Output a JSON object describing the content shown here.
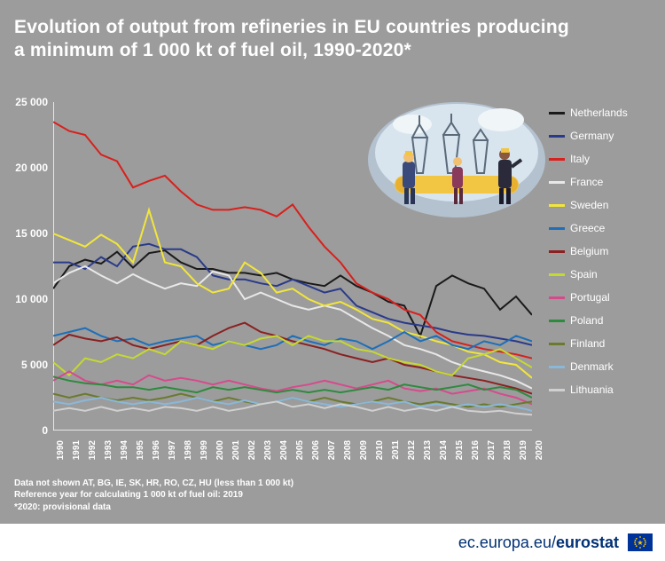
{
  "title_line1": "Evolution of output from refineries in EU countries producing",
  "title_line2": "a minimum of 1 000 kt of fuel oil, 1990-2020*",
  "background_color": "#9c9c9c",
  "text_color": "#ffffff",
  "axis_color": "#ffffff",
  "y": {
    "min": 0,
    "max": 25000,
    "step": 5000,
    "ticks": [
      0,
      5000,
      10000,
      15000,
      20000,
      25000
    ],
    "labels": [
      "0",
      "5 000",
      "10 000",
      "15 000",
      "20 000",
      "25 000"
    ]
  },
  "x": {
    "min": 1990,
    "max": 2020,
    "ticks": [
      1990,
      1991,
      1992,
      1993,
      1994,
      1995,
      1996,
      1997,
      1998,
      1999,
      2000,
      2001,
      2002,
      2003,
      2004,
      2005,
      2006,
      2007,
      2008,
      2009,
      2010,
      2011,
      2012,
      2013,
      2014,
      2015,
      2016,
      2017,
      2018,
      2019,
      2020
    ]
  },
  "series": [
    {
      "name": "Netherlands",
      "color": "#1a1a1a",
      "values": [
        10800,
        12500,
        13000,
        12700,
        13600,
        12400,
        13500,
        13700,
        12800,
        12300,
        12300,
        12000,
        12000,
        11800,
        12000,
        11500,
        11200,
        11000,
        11800,
        11000,
        10500,
        9800,
        9500,
        7200,
        11000,
        11800,
        11200,
        10800,
        9200,
        10200,
        8800
      ]
    },
    {
      "name": "Germany",
      "color": "#2a3a8a",
      "values": [
        12800,
        12800,
        12300,
        13200,
        12500,
        14000,
        14200,
        13800,
        13800,
        13200,
        11800,
        11500,
        11500,
        11200,
        11000,
        11500,
        11000,
        10500,
        10800,
        9500,
        9000,
        8500,
        8200,
        8000,
        7800,
        7500,
        7300,
        7200,
        7000,
        6800,
        6500
      ]
    },
    {
      "name": "Italy",
      "color": "#d8201c",
      "values": [
        23500,
        22800,
        22500,
        21000,
        20500,
        18500,
        19000,
        19400,
        18200,
        17200,
        16800,
        16800,
        17000,
        16800,
        16300,
        17200,
        15500,
        14000,
        12800,
        11200,
        10500,
        10000,
        9200,
        8800,
        7500,
        6800,
        6500,
        6200,
        6000,
        5800,
        5500
      ]
    },
    {
      "name": "France",
      "color": "#e8e8e8",
      "values": [
        11200,
        12000,
        12500,
        11800,
        11200,
        11900,
        11300,
        10800,
        11200,
        11000,
        12100,
        11800,
        10000,
        10500,
        10000,
        9500,
        9200,
        9500,
        9200,
        8500,
        7800,
        7200,
        6500,
        6200,
        5800,
        5200,
        4800,
        4500,
        4200,
        3800,
        3200
      ]
    },
    {
      "name": "Sweden",
      "color": "#f2e63a",
      "values": [
        15000,
        14500,
        14000,
        14900,
        14200,
        12800,
        16800,
        12800,
        12500,
        11200,
        10500,
        10800,
        12800,
        12000,
        10500,
        10800,
        10000,
        9500,
        9800,
        9200,
        8500,
        8200,
        7500,
        7200,
        6800,
        6500,
        6000,
        5800,
        5200,
        5000,
        4000
      ]
    },
    {
      "name": "Greece",
      "color": "#1e6fb8",
      "values": [
        7200,
        7500,
        7800,
        7200,
        6800,
        7000,
        6500,
        6800,
        7000,
        7200,
        6500,
        6800,
        6500,
        6200,
        6500,
        7200,
        6800,
        6500,
        7000,
        6800,
        6200,
        6800,
        7500,
        6800,
        7200,
        6500,
        6200,
        6800,
        6500,
        7200,
        6800
      ]
    },
    {
      "name": "Belgium",
      "color": "#8a2020",
      "values": [
        6500,
        7300,
        7000,
        6800,
        7100,
        6500,
        6200,
        6500,
        6800,
        6500,
        7200,
        7800,
        8200,
        7500,
        7200,
        6800,
        6500,
        6200,
        5800,
        5500,
        5200,
        5500,
        5000,
        4800,
        4500,
        4200,
        4000,
        3800,
        3500,
        3200,
        2800
      ]
    },
    {
      "name": "Spain",
      "color": "#c5d930",
      "values": [
        5200,
        4200,
        5500,
        5200,
        5800,
        5500,
        6200,
        5800,
        6800,
        6500,
        6200,
        6800,
        6500,
        7000,
        7200,
        6500,
        7200,
        6800,
        6800,
        6200,
        6000,
        5500,
        5200,
        5000,
        4500,
        4200,
        5500,
        5800,
        6200,
        5500,
        4800
      ]
    },
    {
      "name": "Portugal",
      "color": "#d64a8c",
      "values": [
        3800,
        4500,
        3800,
        3500,
        3800,
        3500,
        4200,
        3800,
        4000,
        3800,
        3500,
        3800,
        3500,
        3200,
        3000,
        3300,
        3500,
        3800,
        3500,
        3200,
        3500,
        3800,
        3200,
        3000,
        3200,
        2800,
        3000,
        3200,
        2800,
        2500,
        2000
      ]
    },
    {
      "name": "Poland",
      "color": "#2e8a3e",
      "values": [
        4100,
        3800,
        3600,
        3500,
        3300,
        3300,
        3100,
        3300,
        3100,
        2900,
        3300,
        3100,
        3300,
        3100,
        2900,
        3100,
        2900,
        3100,
        2900,
        3100,
        3300,
        3100,
        3500,
        3300,
        3100,
        3300,
        3500,
        3100,
        3300,
        3100,
        2500
      ]
    },
    {
      "name": "Finland",
      "color": "#6a7a2e",
      "values": [
        2800,
        2500,
        2800,
        2500,
        2300,
        2500,
        2300,
        2500,
        2800,
        2500,
        2200,
        2500,
        2200,
        2000,
        2200,
        2500,
        2200,
        2500,
        2200,
        2000,
        2200,
        2500,
        2200,
        2000,
        2200,
        2000,
        1800,
        2000,
        1800,
        2000,
        2200
      ]
    },
    {
      "name": "Denmark",
      "color": "#8ab8d8",
      "values": [
        2200,
        2000,
        2300,
        2500,
        2200,
        2000,
        2200,
        2000,
        2200,
        2500,
        2200,
        2000,
        2300,
        2000,
        2200,
        2500,
        2200,
        2000,
        1800,
        2000,
        2200,
        2000,
        2200,
        1800,
        2000,
        1800,
        2000,
        1800,
        2000,
        1800,
        1500
      ]
    },
    {
      "name": "Lithuania",
      "color": "#d0d0d0",
      "values": [
        1500,
        1700,
        1500,
        1800,
        1500,
        1700,
        1500,
        1800,
        1700,
        1500,
        1800,
        1500,
        1700,
        2000,
        2200,
        1800,
        2000,
        1700,
        2000,
        1800,
        1500,
        1800,
        1500,
        1700,
        1500,
        1800,
        1500,
        1400,
        1500,
        1300,
        1200
      ]
    }
  ],
  "footnotes": [
    "Data not shown AT, BG, IE, SK, HR, RO, CZ, HU (less than 1 000 kt)",
    "Reference year for calculating 1 000 kt of fuel oil: 2019",
    "*2020: provisional data"
  ],
  "footer": {
    "prefix": "ec.europa.eu",
    "slash": "/",
    "brand": "eurostat"
  },
  "illustration_colors": {
    "dome": "#b8c8d8",
    "sky": "#d8e5ef",
    "pipe": "#f2c543",
    "worker1": "#3a4a7a",
    "worker2": "#2a2a3a",
    "person": "#8a3a5a",
    "derrick": "#5a6a7a"
  }
}
